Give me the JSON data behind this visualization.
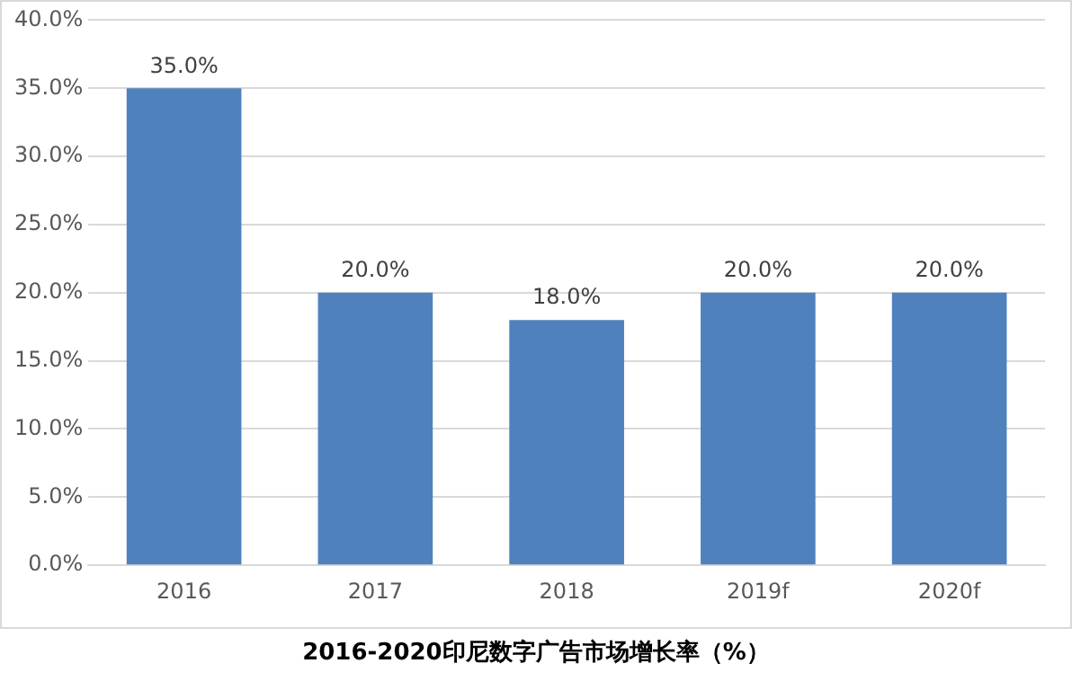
{
  "chart_data": {
    "type": "bar",
    "title": "2016-2020印尼数字广告市场增长率（%）",
    "categories": [
      "2016",
      "2017",
      "2018",
      "2019f",
      "2020f"
    ],
    "values": [
      35,
      20,
      18,
      20,
      20
    ],
    "value_labels": [
      "35.0%",
      "20.0%",
      "18.0%",
      "20.0%",
      "20.0%"
    ],
    "color": "#4f81bd",
    "ylim": [
      0,
      40
    ],
    "yticks": [
      {
        "value": 0,
        "label": "0.0%"
      },
      {
        "value": 5,
        "label": "5.0%"
      },
      {
        "value": 10,
        "label": "10.0%"
      },
      {
        "value": 15,
        "label": "15.0%"
      },
      {
        "value": 20,
        "label": "20.0%"
      },
      {
        "value": 25,
        "label": "25.0%"
      },
      {
        "value": 30,
        "label": "30.0%"
      },
      {
        "value": 35,
        "label": "35.0%"
      },
      {
        "value": 40,
        "label": "40.0%"
      }
    ],
    "grid": "y",
    "legend": false
  }
}
